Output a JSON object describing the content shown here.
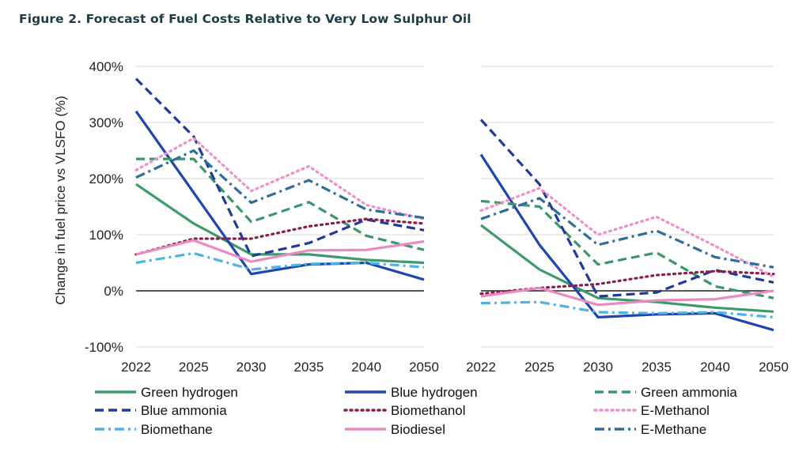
{
  "figure_title": "Figure 2. Forecast of Fuel Costs Relative to Very Low Sulphur Oil",
  "chart_data": [
    {
      "type": "line",
      "panel": "left",
      "x": [
        "2022",
        "2025",
        "2030",
        "2035",
        "2040",
        "2050"
      ],
      "ylabel": "Change in fuel price vs VLSFO (%)",
      "ylim": [
        -100,
        400
      ],
      "yticks": [
        "400%",
        "300%",
        "200%",
        "100%",
        "0%",
        "-100%"
      ],
      "grid": true,
      "series": [
        {
          "name": "Green hydrogen",
          "values": [
            190,
            120,
            65,
            65,
            55,
            50
          ]
        },
        {
          "name": "Blue hydrogen",
          "values": [
            320,
            175,
            30,
            47,
            50,
            20
          ]
        },
        {
          "name": "Green ammonia",
          "values": [
            235,
            235,
            123,
            158,
            98,
            73
          ]
        },
        {
          "name": "Blue ammonia",
          "values": [
            378,
            275,
            62,
            85,
            127,
            108
          ]
        },
        {
          "name": "Biomethanol",
          "values": [
            65,
            93,
            93,
            115,
            128,
            120
          ]
        },
        {
          "name": "E-Methanol",
          "values": [
            215,
            272,
            178,
            222,
            153,
            128
          ]
        },
        {
          "name": "Biomethane",
          "values": [
            50,
            67,
            38,
            48,
            50,
            42
          ]
        },
        {
          "name": "Biodiesel",
          "values": [
            65,
            90,
            52,
            72,
            73,
            88
          ]
        },
        {
          "name": "E-Methane",
          "values": [
            202,
            250,
            157,
            197,
            145,
            130
          ]
        }
      ]
    },
    {
      "type": "line",
      "panel": "right",
      "x": [
        "2022",
        "2025",
        "2030",
        "2035",
        "2040",
        "2050"
      ],
      "ylim": [
        -100,
        400
      ],
      "grid": true,
      "series": [
        {
          "name": "Green hydrogen",
          "values": [
            117,
            38,
            -13,
            -20,
            -30,
            -37
          ]
        },
        {
          "name": "Blue hydrogen",
          "values": [
            243,
            82,
            -47,
            -42,
            -40,
            -70
          ]
        },
        {
          "name": "Green ammonia",
          "values": [
            160,
            150,
            47,
            68,
            8,
            -13
          ]
        },
        {
          "name": "Blue ammonia",
          "values": [
            305,
            190,
            -10,
            -3,
            37,
            15
          ]
        },
        {
          "name": "Biomethanol",
          "values": [
            -5,
            5,
            12,
            28,
            35,
            30
          ]
        },
        {
          "name": "E-Methanol",
          "values": [
            143,
            183,
            100,
            132,
            80,
            25
          ]
        },
        {
          "name": "Biomethane",
          "values": [
            -22,
            -20,
            -38,
            -40,
            -38,
            -47
          ]
        },
        {
          "name": "Biodiesel",
          "values": [
            -10,
            5,
            -25,
            -17,
            -15,
            0
          ]
        },
        {
          "name": "E-Methane",
          "values": [
            128,
            165,
            82,
            107,
            60,
            42
          ]
        }
      ]
    }
  ],
  "styles": [
    {
      "name": "Green hydrogen",
      "color": "#3f9a6b",
      "dash": "solid"
    },
    {
      "name": "Blue hydrogen",
      "color": "#1f45b0",
      "dash": "solid"
    },
    {
      "name": "Green ammonia",
      "color": "#3a9868",
      "dash": "dash"
    },
    {
      "name": "Blue ammonia",
      "color": "#1f3a99",
      "dash": "dash"
    },
    {
      "name": "Biomethanol",
      "color": "#8c1d4a",
      "dash": "dot"
    },
    {
      "name": "E-Methanol",
      "color": "#ee8fc8",
      "dash": "dot"
    },
    {
      "name": "Biomethane",
      "color": "#4fb1e6",
      "dash": "dashdot"
    },
    {
      "name": "Biodiesel",
      "color": "#e98bc2",
      "dash": "solid"
    },
    {
      "name": "E-Methane",
      "color": "#2e6e9c",
      "dash": "dashdot"
    }
  ],
  "legend": [
    "Green hydrogen",
    "Blue hydrogen",
    "Green ammonia",
    "Blue ammonia",
    "Biomethanol",
    "E-Methanol",
    "Biomethane",
    "Biodiesel",
    "E-Methane"
  ]
}
